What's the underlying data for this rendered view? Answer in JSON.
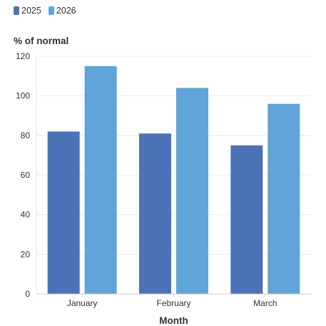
{
  "chart_data": {
    "type": "bar",
    "categories": [
      "January",
      "February",
      "March"
    ],
    "series": [
      {
        "name": "2025",
        "values": [
          82,
          81,
          75
        ],
        "color": "#4C72B8"
      },
      {
        "name": "2026",
        "values": [
          115,
          104,
          96
        ],
        "color": "#5FA5D9"
      }
    ],
    "title": "",
    "xlabel": "Month",
    "ylabel": "% of normal",
    "ylim": [
      0,
      120
    ],
    "yticks": [
      0,
      20,
      40,
      60,
      80,
      100,
      120
    ],
    "grid": true,
    "legend_position": "top-left"
  }
}
